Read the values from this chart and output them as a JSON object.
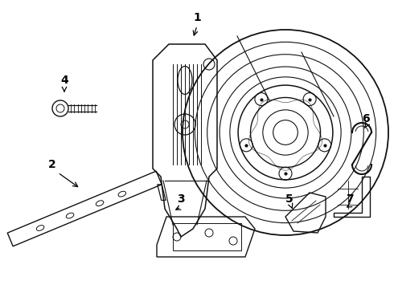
{
  "background_color": "#ffffff",
  "line_color": "#111111",
  "line_width": 1.0,
  "fig_width": 4.9,
  "fig_height": 3.6,
  "dpi": 100,
  "label_fontsize": 10
}
